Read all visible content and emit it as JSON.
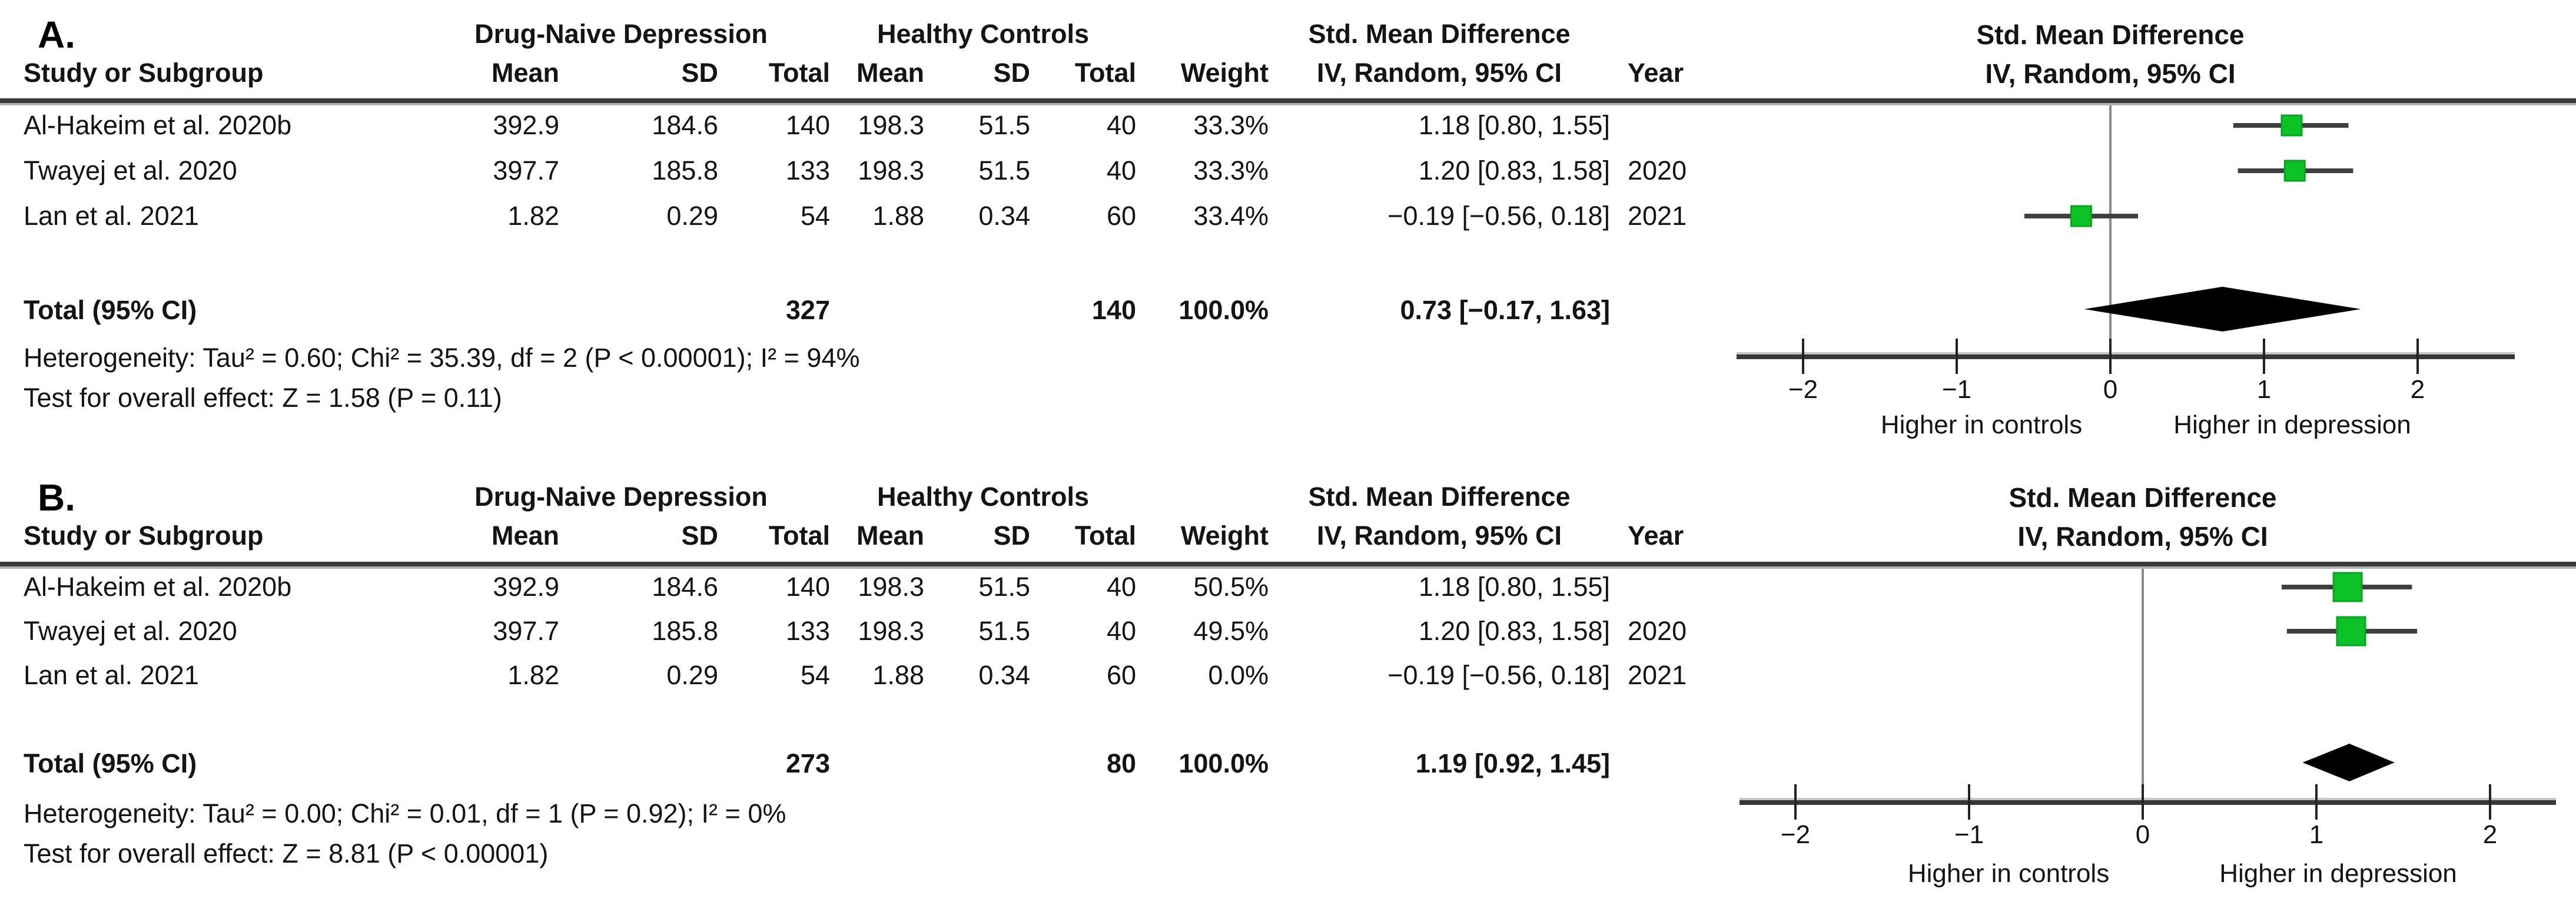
{
  "chart_data": [
    {
      "type": "forest",
      "panel_label": "A.",
      "plot_title": "Std. Mean Difference",
      "plot_subtitle": "IV, Random, 95% CI",
      "group_headers": {
        "experimental": "Drug-Naive Depression",
        "control": "Healthy Controls",
        "effect": "Std. Mean Difference"
      },
      "columns": {
        "study": "Study or Subgroup",
        "mean": "Mean",
        "sd": "SD",
        "total": "Total",
        "weight": "Weight",
        "effect_ci": "IV, Random, 95% CI",
        "year": "Year"
      },
      "studies": [
        {
          "study": "Al-Hakeim et al. 2020b",
          "exp_mean": "392.9",
          "exp_sd": "184.6",
          "exp_total": "140",
          "ctrl_mean": "198.3",
          "ctrl_sd": "51.5",
          "ctrl_total": "40",
          "weight": "33.3%",
          "smd_ci": "1.18 [0.80, 1.55]",
          "year": "",
          "est": 1.18,
          "lo": 0.8,
          "hi": 1.55,
          "marker": true,
          "marker_px": 34
        },
        {
          "study": "Twayej et al. 2020",
          "exp_mean": "397.7",
          "exp_sd": "185.8",
          "exp_total": "133",
          "ctrl_mean": "198.3",
          "ctrl_sd": "51.5",
          "ctrl_total": "40",
          "weight": "33.3%",
          "smd_ci": "1.20 [0.83, 1.58]",
          "year": "2020",
          "est": 1.2,
          "lo": 0.83,
          "hi": 1.58,
          "marker": true,
          "marker_px": 34
        },
        {
          "study": "Lan et al. 2021",
          "exp_mean": "1.82",
          "exp_sd": "0.29",
          "exp_total": "54",
          "ctrl_mean": "1.88",
          "ctrl_sd": "0.34",
          "ctrl_total": "60",
          "weight": "33.4%",
          "smd_ci": "−0.19 [−0.56, 0.18]",
          "year": "2021",
          "est": -0.19,
          "lo": -0.56,
          "hi": 0.18,
          "marker": true,
          "marker_px": 34
        }
      ],
      "total": {
        "label": "Total (95% CI)",
        "exp_total": "327",
        "ctrl_total": "140",
        "weight": "100.0%",
        "smd_ci": "0.73 [−0.17, 1.63]",
        "est": 0.73,
        "lo": -0.17,
        "hi": 1.63
      },
      "heterogeneity": "Heterogeneity: Tau² = 0.60; Chi² = 35.39, df = 2 (P < 0.00001); I² = 94%",
      "overall_effect": "Test for overall effect: Z = 1.58 (P = 0.11)",
      "axis": {
        "ticks": [
          -2,
          -1,
          0,
          1,
          2
        ],
        "tick_labels": [
          "−2",
          "−1",
          "0",
          "1",
          "2"
        ],
        "xlim": [
          -2.4,
          2.5
        ],
        "left_label": "Higher in controls",
        "right_label": "Higher in depression"
      },
      "colors": {
        "marker": "#0cc226",
        "marker_edge": "#09a51f",
        "diamond": "#000000"
      }
    },
    {
      "type": "forest",
      "panel_label": "B.",
      "plot_title": "Std. Mean Difference",
      "plot_subtitle": "IV, Random, 95% CI",
      "group_headers": {
        "experimental": "Drug-Naive Depression",
        "control": "Healthy Controls",
        "effect": "Std. Mean Difference"
      },
      "columns": {
        "study": "Study or Subgroup",
        "mean": "Mean",
        "sd": "SD",
        "total": "Total",
        "weight": "Weight",
        "effect_ci": "IV, Random, 95% CI",
        "year": "Year"
      },
      "studies": [
        {
          "study": "Al-Hakeim et al. 2020b",
          "exp_mean": "392.9",
          "exp_sd": "184.6",
          "exp_total": "140",
          "ctrl_mean": "198.3",
          "ctrl_sd": "51.5",
          "ctrl_total": "40",
          "weight": "50.5%",
          "smd_ci": "1.18 [0.80, 1.55]",
          "year": "",
          "est": 1.18,
          "lo": 0.8,
          "hi": 1.55,
          "marker": true,
          "marker_px": 48
        },
        {
          "study": "Twayej et al. 2020",
          "exp_mean": "397.7",
          "exp_sd": "185.8",
          "exp_total": "133",
          "ctrl_mean": "198.3",
          "ctrl_sd": "51.5",
          "ctrl_total": "40",
          "weight": "49.5%",
          "smd_ci": "1.20 [0.83, 1.58]",
          "year": "2020",
          "est": 1.2,
          "lo": 0.83,
          "hi": 1.58,
          "marker": true,
          "marker_px": 48
        },
        {
          "study": "Lan et al. 2021",
          "exp_mean": "1.82",
          "exp_sd": "0.29",
          "exp_total": "54",
          "ctrl_mean": "1.88",
          "ctrl_sd": "0.34",
          "ctrl_total": "60",
          "weight": "0.0%",
          "smd_ci": "−0.19 [−0.56, 0.18]",
          "year": "2021",
          "est": -0.19,
          "lo": -0.56,
          "hi": 0.18,
          "marker": false,
          "marker_px": 0
        }
      ],
      "total": {
        "label": "Total (95% CI)",
        "exp_total": "273",
        "ctrl_total": "80",
        "weight": "100.0%",
        "smd_ci": "1.19 [0.92, 1.45]",
        "est": 1.19,
        "lo": 0.92,
        "hi": 1.45
      },
      "heterogeneity": "Heterogeneity: Tau² = 0.00; Chi² = 0.01, df = 1 (P = 0.92); I² = 0%",
      "overall_effect": "Test for overall effect: Z = 8.81 (P < 0.00001)",
      "axis": {
        "ticks": [
          -2,
          -1,
          0,
          1,
          2
        ],
        "tick_labels": [
          "−2",
          "−1",
          "0",
          "1",
          "2"
        ],
        "xlim": [
          -2.4,
          2.5
        ],
        "left_label": "Higher in controls",
        "right_label": "Higher in depression"
      },
      "colors": {
        "marker": "#0cc226",
        "marker_edge": "#09a51f",
        "diamond": "#000000"
      }
    }
  ]
}
